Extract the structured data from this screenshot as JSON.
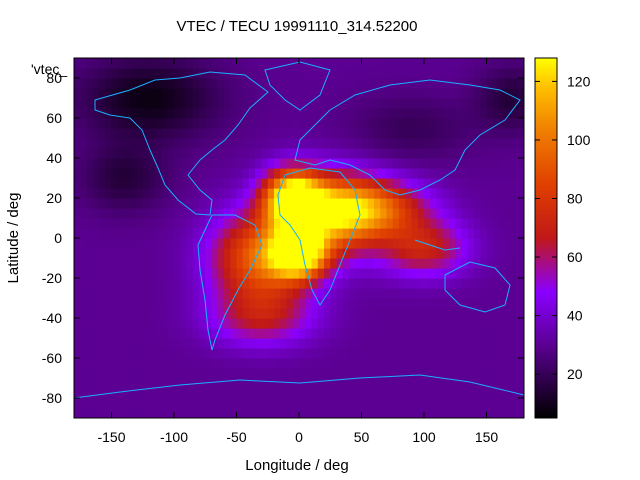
{
  "chart_data": {
    "type": "heatmap",
    "title": "VTEC / TECU 19991110_314.52200",
    "xlabel": "Longitude / deg",
    "ylabel": "Latitude / deg",
    "key_label": "'vtec_",
    "xlim": [
      -180,
      180
    ],
    "ylim": [
      -90,
      90
    ],
    "x_ticks": [
      -150,
      -100,
      -50,
      0,
      50,
      100,
      150
    ],
    "y_ticks": [
      80,
      60,
      40,
      20,
      0,
      -20,
      -40,
      -60,
      -80
    ],
    "colorbar": {
      "range": [
        5,
        128
      ],
      "ticks": [
        20,
        40,
        60,
        80,
        100,
        120
      ],
      "palette": "black-purple-red-orange-yellow"
    },
    "data": {
      "resolution_deg": 5,
      "background_vtec": 30,
      "features": [
        {
          "lon": -5,
          "lat": 20,
          "peak": 125,
          "sigma_lon": 16,
          "sigma_lat": 10
        },
        {
          "lon": 0,
          "lat": -8,
          "peak": 122,
          "sigma_lon": 15,
          "sigma_lat": 8
        },
        {
          "lon": 25,
          "lat": 12,
          "peak": 100,
          "sigma_lon": 28,
          "sigma_lat": 14
        },
        {
          "lon": -30,
          "lat": -10,
          "peak": 95,
          "sigma_lon": 28,
          "sigma_lat": 16
        },
        {
          "lon": 60,
          "lat": 15,
          "peak": 85,
          "sigma_lon": 30,
          "sigma_lat": 10
        },
        {
          "lon": 100,
          "lat": -5,
          "peak": 70,
          "sigma_lon": 25,
          "sigma_lat": 10
        },
        {
          "lon": -30,
          "lat": -40,
          "peak": 60,
          "sigma_lon": 30,
          "sigma_lat": 10
        },
        {
          "lon": -120,
          "lat": 70,
          "peak": 8,
          "sigma_lon": 40,
          "sigma_lat": 15
        },
        {
          "lon": -140,
          "lat": 30,
          "peak": 15,
          "sigma_lon": 25,
          "sigma_lat": 12
        },
        {
          "lon": 170,
          "lat": 70,
          "peak": 15,
          "sigma_lon": 20,
          "sigma_lat": 12
        },
        {
          "lon": 90,
          "lat": 55,
          "peak": 20,
          "sigma_lon": 35,
          "sigma_lat": 12
        }
      ]
    }
  }
}
